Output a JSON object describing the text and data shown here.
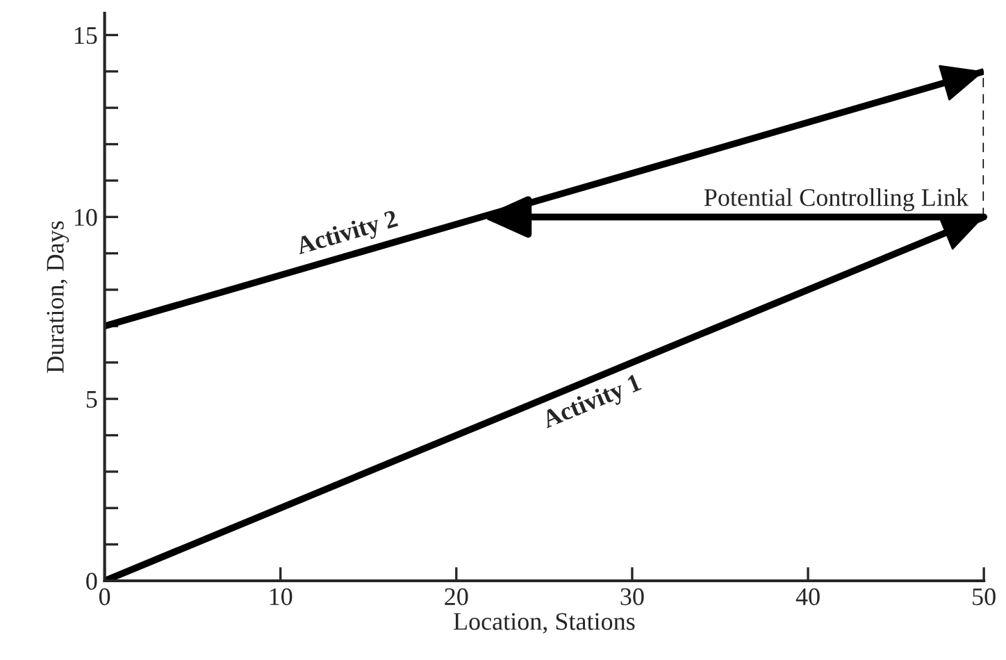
{
  "chart_data": {
    "type": "line",
    "xlabel": "Location, Stations",
    "ylabel": "Duration, Days",
    "xlim": [
      0,
      50
    ],
    "ylim": [
      0,
      15.6
    ],
    "xticks": [
      0,
      10,
      20,
      30,
      40,
      50
    ],
    "yticks": [
      0,
      {
        "value": 1,
        "label": null
      },
      {
        "value": 2,
        "label": null
      },
      {
        "value": 3,
        "label": null
      },
      {
        "value": 4,
        "label": null
      },
      5,
      {
        "value": 6,
        "label": null
      },
      {
        "value": 7,
        "label": null
      },
      {
        "value": 8,
        "label": null
      },
      {
        "value": 9,
        "label": null
      },
      10,
      {
        "value": 11,
        "label": null
      },
      {
        "value": 12,
        "label": null
      },
      {
        "value": 13,
        "label": null
      },
      {
        "value": 14,
        "label": null
      },
      15
    ],
    "x": [
      0,
      50
    ],
    "grid": false,
    "legend": false,
    "marker": "none",
    "series": [
      {
        "name": "Activity 1",
        "color": "#000000",
        "values": [
          0,
          10
        ],
        "line_style": "solid"
      },
      {
        "name": "Activity 2",
        "color": "#000000",
        "values": [
          7,
          14
        ],
        "line_style": "solid"
      },
      {
        "color": "#000000",
        "x": [
          50,
          50
        ],
        "values": [
          10,
          14
        ],
        "line_style": "dashed"
      }
    ],
    "annotations": [
      {
        "text": "Potential Controlling Link",
        "x": 50,
        "y": 10
      }
    ]
  }
}
